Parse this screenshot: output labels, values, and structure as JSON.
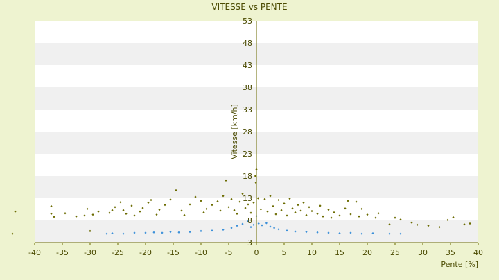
{
  "chart_data": {
    "type": "scatter",
    "title": "VITESSE vs PENTE",
    "xlabel": "Pente [%]",
    "ylabel": "Vitesse [km/h]",
    "xlim": [
      -40,
      40
    ],
    "ylim": [
      3,
      53
    ],
    "x_ticks": [
      -40,
      -35,
      -30,
      -25,
      -20,
      -15,
      -10,
      -5,
      0,
      5,
      10,
      15,
      20,
      25,
      30,
      35,
      40
    ],
    "y_ticks": [
      3,
      8,
      13,
      18,
      23,
      28,
      33,
      38,
      43,
      48,
      53
    ],
    "grid": "horizontal bands",
    "band_colors": [
      "#f0f0f0",
      "#ffffff"
    ],
    "legend": "none",
    "series": [
      {
        "color": "#6b6b00",
        "marker": "diamond",
        "points": [
          [
            -43.5,
            10.0
          ],
          [
            -44.0,
            5.0
          ],
          [
            -37.0,
            11.2
          ],
          [
            -37.0,
            9.5
          ],
          [
            -36.5,
            8.8
          ],
          [
            -34.5,
            9.6
          ],
          [
            -32.5,
            8.9
          ],
          [
            -31.0,
            9.1
          ],
          [
            -30.5,
            10.6
          ],
          [
            -29.5,
            9.3
          ],
          [
            -30.0,
            5.6
          ],
          [
            -28.5,
            10.0
          ],
          [
            -26.5,
            9.7
          ],
          [
            -26.0,
            10.3
          ],
          [
            -25.5,
            11.0
          ],
          [
            -24.5,
            12.1
          ],
          [
            -24.0,
            10.3
          ],
          [
            -23.5,
            9.5
          ],
          [
            -22.5,
            11.3
          ],
          [
            -22.0,
            9.1
          ],
          [
            -21.0,
            10.0
          ],
          [
            -20.5,
            10.8
          ],
          [
            -19.5,
            12.0
          ],
          [
            -19.0,
            12.6
          ],
          [
            -18.0,
            9.3
          ],
          [
            -17.5,
            10.4
          ],
          [
            -16.5,
            11.5
          ],
          [
            -15.5,
            12.7
          ],
          [
            -14.5,
            14.8
          ],
          [
            -13.5,
            10.2
          ],
          [
            -13.0,
            9.2
          ],
          [
            -12.0,
            11.6
          ],
          [
            -11.0,
            13.3
          ],
          [
            -10.0,
            12.4
          ],
          [
            -9.5,
            9.8
          ],
          [
            -9.0,
            10.6
          ],
          [
            -8.0,
            11.5
          ],
          [
            -7.0,
            12.3
          ],
          [
            -6.5,
            10.2
          ],
          [
            -6.0,
            13.5
          ],
          [
            -5.5,
            17.0
          ],
          [
            -5.0,
            11.0
          ],
          [
            -4.5,
            12.8
          ],
          [
            -4.0,
            10.3
          ],
          [
            -3.5,
            9.5
          ],
          [
            -3.0,
            12.2
          ],
          [
            -2.5,
            14.0
          ],
          [
            -2.0,
            10.8
          ],
          [
            -1.5,
            11.6
          ],
          [
            -1.0,
            9.7
          ],
          [
            -0.5,
            12.0
          ],
          [
            -0.2,
            18.0
          ],
          [
            -0.1,
            16.5
          ],
          [
            0.0,
            19.5
          ],
          [
            0.3,
            13.0
          ],
          [
            0.8,
            10.5
          ],
          [
            1.5,
            12.8
          ],
          [
            2.0,
            10.0
          ],
          [
            2.5,
            13.5
          ],
          [
            3.0,
            11.2
          ],
          [
            3.5,
            9.4
          ],
          [
            4.0,
            12.6
          ],
          [
            4.5,
            10.3
          ],
          [
            5.0,
            11.8
          ],
          [
            5.5,
            9.1
          ],
          [
            6.0,
            12.9
          ],
          [
            6.5,
            10.7
          ],
          [
            7.0,
            9.8
          ],
          [
            7.5,
            11.5
          ],
          [
            8.0,
            10.2
          ],
          [
            8.5,
            12.0
          ],
          [
            9.0,
            9.2
          ],
          [
            9.5,
            11.0
          ],
          [
            10.0,
            10.1
          ],
          [
            11.0,
            9.5
          ],
          [
            11.5,
            11.3
          ],
          [
            12.0,
            8.9
          ],
          [
            13.0,
            10.4
          ],
          [
            13.5,
            8.6
          ],
          [
            14.0,
            9.8
          ],
          [
            15.0,
            9.1
          ],
          [
            16.0,
            10.7
          ],
          [
            16.5,
            12.4
          ],
          [
            17.0,
            9.4
          ],
          [
            18.0,
            12.2
          ],
          [
            18.5,
            8.9
          ],
          [
            19.0,
            10.6
          ],
          [
            20.0,
            9.3
          ],
          [
            21.5,
            8.6
          ],
          [
            22.0,
            9.6
          ],
          [
            24.0,
            7.1
          ],
          [
            25.0,
            8.6
          ],
          [
            26.0,
            8.2
          ],
          [
            28.0,
            7.5
          ],
          [
            29.0,
            7.0
          ],
          [
            31.0,
            6.8
          ],
          [
            33.0,
            6.5
          ],
          [
            34.5,
            8.1
          ],
          [
            35.5,
            8.7
          ],
          [
            37.5,
            7.1
          ],
          [
            38.5,
            7.3
          ]
        ]
      },
      {
        "color": "#3a8fd9",
        "marker": "diamond",
        "points": [
          [
            -27.0,
            5.0
          ],
          [
            -26.0,
            5.1
          ],
          [
            -24.0,
            5.0
          ],
          [
            -22.0,
            5.2
          ],
          [
            -20.0,
            5.2
          ],
          [
            -18.5,
            5.3
          ],
          [
            -17.0,
            5.2
          ],
          [
            -15.5,
            5.4
          ],
          [
            -14.0,
            5.3
          ],
          [
            -12.0,
            5.4
          ],
          [
            -10.0,
            5.6
          ],
          [
            -8.0,
            5.7
          ],
          [
            -6.0,
            5.9
          ],
          [
            -4.5,
            6.3
          ],
          [
            -3.5,
            6.8
          ],
          [
            -2.5,
            7.2
          ],
          [
            -1.5,
            7.8
          ],
          [
            -1.0,
            6.5
          ],
          [
            -0.5,
            7.0
          ],
          [
            0.0,
            9.0
          ],
          [
            0.4,
            7.3
          ],
          [
            1.0,
            6.9
          ],
          [
            1.8,
            7.4
          ],
          [
            2.5,
            6.6
          ],
          [
            3.2,
            6.3
          ],
          [
            4.0,
            6.0
          ],
          [
            5.5,
            5.7
          ],
          [
            7.0,
            5.5
          ],
          [
            9.0,
            5.4
          ],
          [
            11.0,
            5.3
          ],
          [
            13.0,
            5.2
          ],
          [
            15.0,
            5.1
          ],
          [
            17.0,
            5.2
          ],
          [
            19.0,
            5.0
          ],
          [
            21.0,
            5.1
          ],
          [
            24.0,
            5.0
          ],
          [
            26.0,
            5.0
          ]
        ]
      }
    ]
  }
}
